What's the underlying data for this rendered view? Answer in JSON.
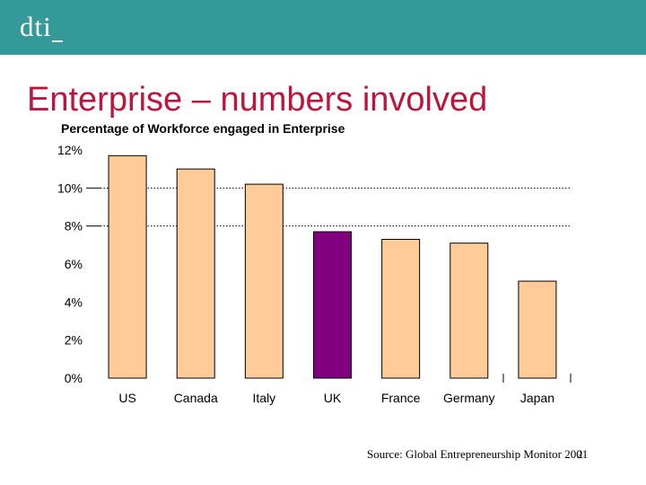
{
  "header": {
    "logo_text": "dti",
    "background_color": "#339a99"
  },
  "slide": {
    "title": "Enterprise – numbers involved",
    "title_color": "#c0143c",
    "source": "Source: Global Entrepreneurship Monitor 2001",
    "page_number": "2"
  },
  "chart_data": {
    "type": "bar",
    "title": "Percentage of Workforce engaged in Enterprise",
    "categories": [
      "US",
      "Canada",
      "Italy",
      "UK",
      "France",
      "Germany",
      "Japan"
    ],
    "values": [
      11.7,
      11.0,
      10.2,
      7.7,
      7.3,
      7.1,
      5.1
    ],
    "ylim": [
      0,
      12
    ],
    "yticks": [
      0,
      2,
      4,
      6,
      8,
      10,
      12
    ],
    "ytick_labels": [
      "0%",
      "2%",
      "4%",
      "6%",
      "8%",
      "10%",
      "12%"
    ],
    "grid_lines_at": [
      8,
      10
    ],
    "xlabel": "",
    "ylabel": "",
    "colors": {
      "default_bar": "#ffcc99",
      "highlight_bar": "#800080",
      "bar_border": "#000000"
    },
    "highlight_category": "UK"
  }
}
